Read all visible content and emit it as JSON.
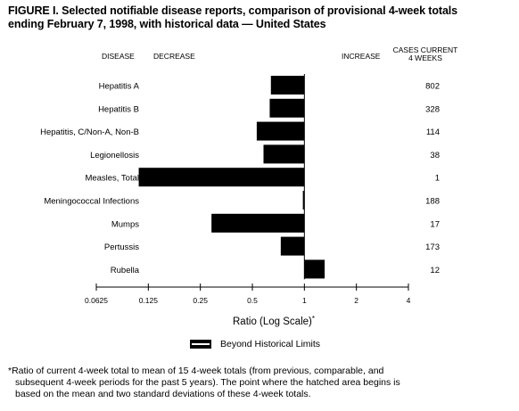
{
  "title_line1": "FIGURE I. Selected notifiable disease reports, comparison of provisional 4-week totals",
  "title_line2": "ending February 7, 1998, with historical data — United States",
  "headers": {
    "disease": "DISEASE",
    "decrease": "DECREASE",
    "increase": "INCREASE",
    "cases_line1": "CASES CURRENT",
    "cases_line2": "4 WEEKS"
  },
  "legend": {
    "label": "Beyond Historical Limits"
  },
  "footnote": {
    "line1": "*Ratio of current 4-week total to mean of 15 4-week totals (from previous, comparable, and",
    "line2": "subsequent 4-week periods for the past 5 years). The point where the hatched area begins is",
    "line3": "based on the mean and two standard deviations of these 4-week totals."
  },
  "chart_data": {
    "type": "bar",
    "orientation": "horizontal",
    "x_scale": "log2",
    "xlim": [
      0.0625,
      4
    ],
    "reference_value": 1,
    "xlabel": "Ratio (Log Scale)",
    "xlabel_mark": "*",
    "x_ticks": [
      {
        "value": 0.0625,
        "label": "0.0625"
      },
      {
        "value": 0.125,
        "label": "0.125"
      },
      {
        "value": 0.25,
        "label": "0.25"
      },
      {
        "value": 0.5,
        "label": "0.5"
      },
      {
        "value": 1,
        "label": "1"
      },
      {
        "value": 2,
        "label": "2"
      },
      {
        "value": 4,
        "label": "4"
      }
    ],
    "categories": [
      "Hepatitis A",
      "Hepatitis B",
      "Hepatitis, C/Non-A, Non-B",
      "Legionellosis",
      "Measles, Total",
      "Meningococcal Infections",
      "Mumps",
      "Pertussis",
      "Rubella"
    ],
    "values": [
      0.64,
      0.63,
      0.53,
      0.58,
      0.11,
      0.98,
      0.29,
      0.73,
      1.31
    ],
    "cases": [
      "802",
      "328",
      "114",
      "38",
      "1",
      "188",
      "17",
      "173",
      "12"
    ],
    "bar_color": "#000000"
  }
}
